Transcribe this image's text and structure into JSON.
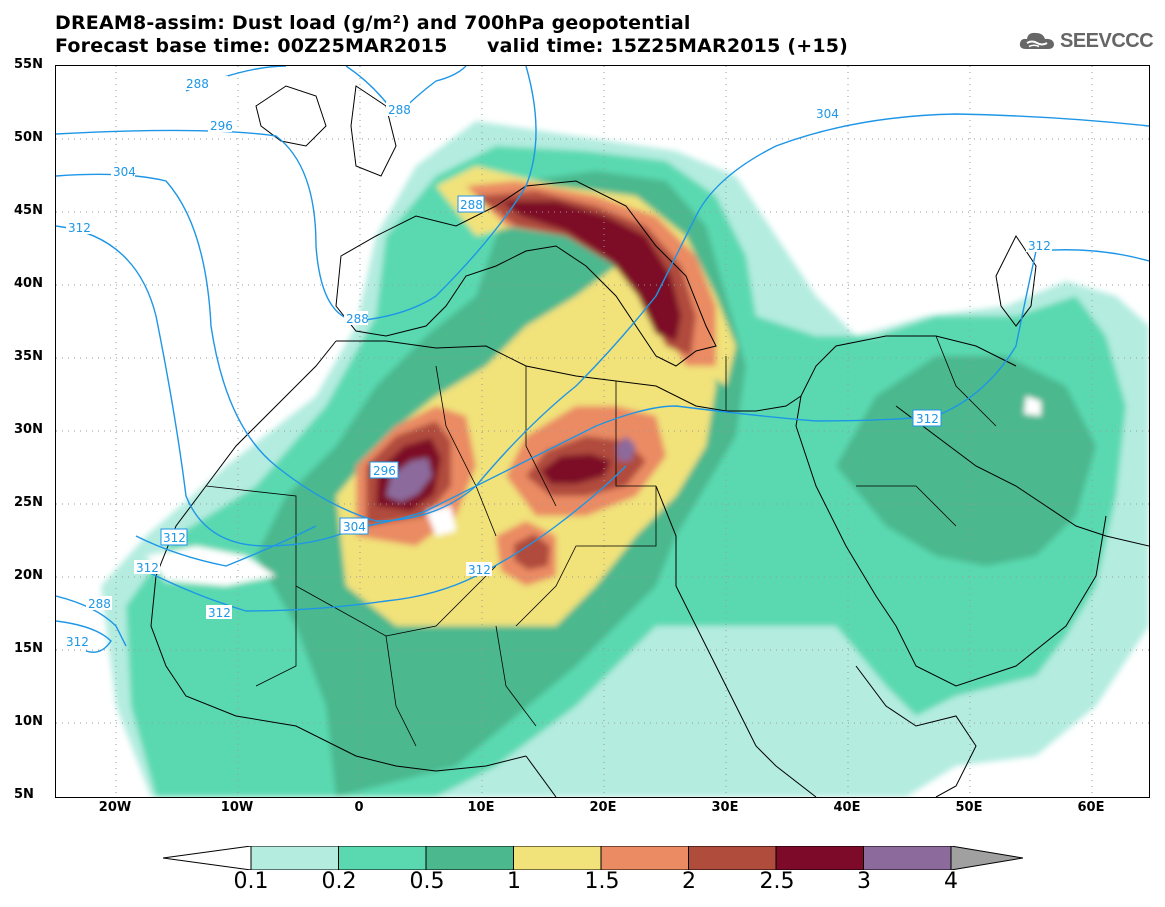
{
  "title_line1": "DREAM8-assim: Dust load (g/m²) and 700hPa geopotential",
  "title_line2_base": "Forecast base time: 00Z25MAR2015",
  "title_line2_valid": "valid time: 15Z25MAR2015 (+15)",
  "logo_text": "SEEVCCC",
  "logo_icon": "cloud-icon",
  "lat_labels": [
    "55N",
    "50N",
    "45N",
    "40N",
    "35N",
    "30N",
    "25N",
    "20N",
    "15N",
    "10N",
    "5N"
  ],
  "lon_labels": [
    "20W",
    "10W",
    "0",
    "10E",
    "20E",
    "30E",
    "40E",
    "50E",
    "60E"
  ],
  "contour_labels": [
    "288",
    "288",
    "288",
    "296",
    "304",
    "304",
    "312",
    "312",
    "288",
    "288",
    "296",
    "304",
    "312",
    "312",
    "312",
    "312",
    "312",
    "312"
  ],
  "colorbar": {
    "labels": [
      "0.1",
      "0.2",
      "0.5",
      "1",
      "1.5",
      "2",
      "2.5",
      "3",
      "4"
    ],
    "colors": [
      "#b4ece0",
      "#5ad9b0",
      "#4cb88e",
      "#f1e27a",
      "#ea8b63",
      "#b04c3c",
      "#7d0a28",
      "#8c6a9c",
      "#a0a0a0"
    ]
  },
  "contour_color": "#1e96e6"
}
